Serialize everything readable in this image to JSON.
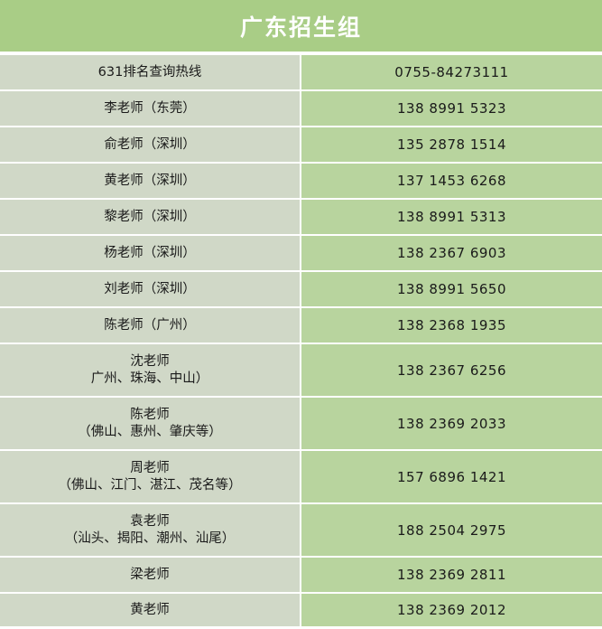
{
  "header": {
    "title": "广东招生组"
  },
  "rows": [
    {
      "name": "631排名查询热线",
      "name2": "",
      "phone": "0755-84273111"
    },
    {
      "name": "李老师（东莞）",
      "name2": "",
      "phone": "138 8991 5323"
    },
    {
      "name": "俞老师（深圳）",
      "name2": "",
      "phone": "135 2878 1514"
    },
    {
      "name": "黄老师（深圳）",
      "name2": "",
      "phone": "137 1453 6268"
    },
    {
      "name": "黎老师（深圳）",
      "name2": "",
      "phone": "138 8991 5313"
    },
    {
      "name": "杨老师（深圳）",
      "name2": "",
      "phone": "138 2367 6903"
    },
    {
      "name": "刘老师（深圳）",
      "name2": "",
      "phone": "138 8991 5650"
    },
    {
      "name": "陈老师（广州）",
      "name2": "",
      "phone": "138 2368 1935"
    },
    {
      "name": "沈老师",
      "name2": "广州、珠海、中山）",
      "phone": "138 2367 6256"
    },
    {
      "name": "陈老师",
      "name2": "（佛山、惠州、肇庆等）",
      "phone": "138 2369 2033"
    },
    {
      "name": "周老师",
      "name2": "（佛山、江门、湛江、茂名等）",
      "phone": "157 6896 1421"
    },
    {
      "name": "袁老师",
      "name2": "（汕头、揭阳、潮州、汕尾）",
      "phone": "188 2504 2975"
    },
    {
      "name": "梁老师",
      "name2": "",
      "phone": "138 2369 2811"
    },
    {
      "name": "黄老师",
      "name2": "",
      "phone": "138 2369 2012"
    }
  ]
}
